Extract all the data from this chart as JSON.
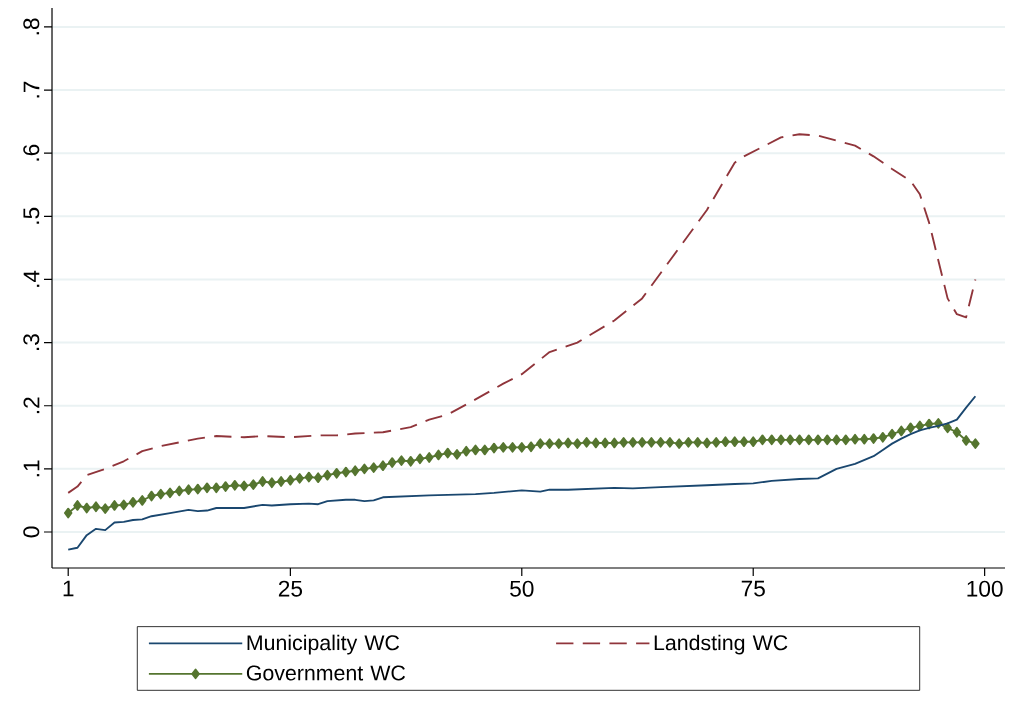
{
  "chart_data": {
    "type": "line",
    "x": [
      1,
      2,
      3,
      4,
      5,
      6,
      7,
      8,
      9,
      10,
      12,
      14,
      15,
      16,
      17,
      20,
      22,
      23,
      25,
      27,
      28,
      29,
      31,
      32,
      33,
      34,
      35,
      40,
      45,
      47,
      50,
      52,
      53,
      55,
      60,
      62,
      65,
      70,
      73,
      75,
      77,
      80,
      82,
      84,
      86,
      88,
      89,
      90,
      91,
      92,
      93,
      94,
      95,
      96,
      97,
      98,
      99
    ],
    "series": [
      {
        "name": "Municipality WC",
        "color": "#1a476f",
        "marker": "none",
        "line_style": "solid",
        "values": [
          -0.028,
          -0.025,
          -0.005,
          0.005,
          0.003,
          0.015,
          0.016,
          0.019,
          0.02,
          0.025,
          0.03,
          0.035,
          0.033,
          0.034,
          0.038,
          0.038,
          0.043,
          0.042,
          0.044,
          0.045,
          0.044,
          0.049,
          0.051,
          0.051,
          0.049,
          0.05,
          0.055,
          0.058,
          0.06,
          0.062,
          0.066,
          0.064,
          0.067,
          0.067,
          0.07,
          0.069,
          0.071,
          0.074,
          0.076,
          0.077,
          0.081,
          0.084,
          0.085,
          0.1,
          0.108,
          0.12,
          0.13,
          0.14,
          0.148,
          0.155,
          0.161,
          0.165,
          0.168,
          0.172,
          0.178,
          0.197,
          0.215
        ]
      },
      {
        "name": "Landsting WC",
        "color": "#90353b",
        "marker": "none",
        "line_style": "dashed",
        "x": [
          1,
          2,
          3,
          5,
          7,
          9,
          11,
          13,
          15,
          17,
          20,
          22,
          25,
          28,
          30,
          32,
          35,
          38,
          40,
          42,
          45,
          48,
          50,
          53,
          56,
          60,
          63,
          66,
          70,
          72,
          73,
          74,
          76,
          78,
          80,
          82,
          84,
          86,
          88,
          90,
          92,
          93,
          94,
          95,
          96,
          97,
          98,
          99
        ],
        "values": [
          0.062,
          0.072,
          0.09,
          0.1,
          0.112,
          0.128,
          0.136,
          0.142,
          0.148,
          0.152,
          0.15,
          0.152,
          0.15,
          0.153,
          0.153,
          0.156,
          0.158,
          0.166,
          0.178,
          0.186,
          0.21,
          0.235,
          0.25,
          0.285,
          0.3,
          0.335,
          0.37,
          0.43,
          0.51,
          0.56,
          0.585,
          0.595,
          0.61,
          0.625,
          0.63,
          0.628,
          0.62,
          0.612,
          0.595,
          0.575,
          0.556,
          0.535,
          0.49,
          0.43,
          0.37,
          0.345,
          0.34,
          0.4
        ]
      },
      {
        "name": "Government WC",
        "color": "#55752f",
        "marker": "diamond",
        "line_style": "solid",
        "x": [
          1,
          2,
          3,
          4,
          5,
          6,
          7,
          8,
          9,
          10,
          11,
          12,
          13,
          14,
          15,
          16,
          17,
          18,
          19,
          20,
          21,
          22,
          23,
          24,
          25,
          26,
          27,
          28,
          29,
          30,
          31,
          32,
          33,
          34,
          35,
          36,
          37,
          38,
          39,
          40,
          41,
          42,
          43,
          44,
          45,
          46,
          47,
          48,
          49,
          50,
          51,
          52,
          53,
          54,
          55,
          56,
          57,
          58,
          59,
          60,
          61,
          62,
          63,
          64,
          65,
          66,
          67,
          68,
          69,
          70,
          71,
          72,
          73,
          74,
          75,
          76,
          77,
          78,
          79,
          80,
          81,
          82,
          83,
          84,
          85,
          86,
          87,
          88,
          89,
          90,
          91,
          92,
          93,
          94,
          95,
          96,
          97,
          98,
          99
        ],
        "values": [
          0.03,
          0.042,
          0.038,
          0.04,
          0.037,
          0.042,
          0.043,
          0.047,
          0.05,
          0.057,
          0.06,
          0.062,
          0.065,
          0.067,
          0.068,
          0.07,
          0.07,
          0.072,
          0.074,
          0.073,
          0.075,
          0.08,
          0.078,
          0.08,
          0.082,
          0.085,
          0.087,
          0.086,
          0.09,
          0.093,
          0.095,
          0.097,
          0.1,
          0.102,
          0.105,
          0.11,
          0.113,
          0.112,
          0.116,
          0.118,
          0.122,
          0.125,
          0.123,
          0.128,
          0.13,
          0.13,
          0.133,
          0.134,
          0.134,
          0.134,
          0.135,
          0.14,
          0.14,
          0.14,
          0.141,
          0.14,
          0.142,
          0.141,
          0.141,
          0.141,
          0.142,
          0.142,
          0.142,
          0.142,
          0.142,
          0.142,
          0.14,
          0.142,
          0.142,
          0.141,
          0.142,
          0.143,
          0.143,
          0.143,
          0.143,
          0.146,
          0.146,
          0.146,
          0.146,
          0.146,
          0.146,
          0.146,
          0.146,
          0.146,
          0.146,
          0.147,
          0.147,
          0.148,
          0.15,
          0.155,
          0.16,
          0.165,
          0.168,
          0.171,
          0.172,
          0.165,
          0.158,
          0.145,
          0.14
        ]
      }
    ],
    "xlim": [
      -0.75,
      102.2
    ],
    "ylim": [
      -0.057,
      0.83
    ],
    "xticks": [
      1,
      25,
      50,
      75,
      100
    ],
    "yticks": [
      {
        "value": 0,
        "label": "0"
      },
      {
        "value": 0.1,
        "label": ".1"
      },
      {
        "value": 0.2,
        "label": ".2"
      },
      {
        "value": 0.3,
        "label": ".3"
      },
      {
        "value": 0.4,
        "label": ".4"
      },
      {
        "value": 0.5,
        "label": ".5"
      },
      {
        "value": 0.6,
        "label": ".6"
      },
      {
        "value": 0.7,
        "label": ".7"
      },
      {
        "value": 0.8,
        "label": ".8"
      }
    ],
    "grid": "y",
    "legend": "bottom"
  }
}
